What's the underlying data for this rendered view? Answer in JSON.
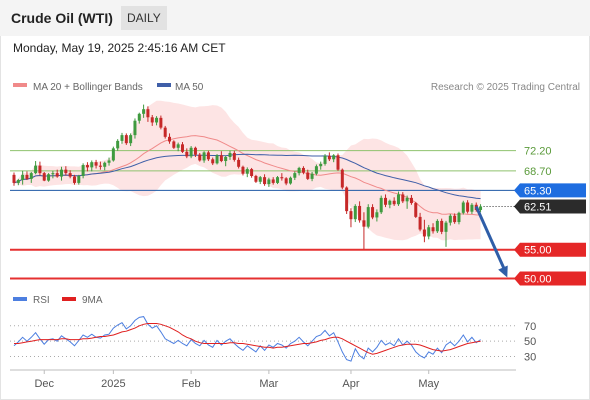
{
  "header": {
    "title": "Crude Oil (WTI)",
    "period": "DAILY",
    "timestamp": "Monday, May 19, 2025 2:45:16 AM CET"
  },
  "colors": {
    "bullish": "#3f9a3f",
    "bearish": "#c62828",
    "ma20": "#f08a8a",
    "bollinger_fill": "#fde4e4",
    "ma50": "#3f5fa8",
    "resistance": "#8fc26e",
    "pivot": "#1f5aa6",
    "current": "#2b2b2b",
    "support": "#e53030",
    "rsi": "#4d7fe0",
    "rsi_ma": "#e02020",
    "arrow": "#2f5ea8"
  },
  "chart_data": [
    {
      "type": "candlestick",
      "legend": [
        {
          "label": "MA 20 + Bollinger Bands",
          "color": "#f08a8a"
        },
        {
          "label": "MA 50",
          "color": "#3f5fa8"
        }
      ],
      "copyright": "Research © 2025 Trading Central",
      "ylim": [
        48.0,
        81.0
      ],
      "x_tick_labels": [
        "Dec",
        "2025",
        "Feb",
        "Mar",
        "Apr",
        "May"
      ],
      "x_tick_index": [
        7,
        23,
        41,
        59,
        78,
        96
      ],
      "levels": [
        {
          "label": "72.20",
          "value": 72.2,
          "kind": "resistance"
        },
        {
          "label": "68.70",
          "value": 68.7,
          "kind": "resistance"
        },
        {
          "label": "65.30",
          "value": 65.3,
          "kind": "pivot"
        },
        {
          "label": "62.51",
          "value": 62.51,
          "kind": "current"
        },
        {
          "label": "55.00",
          "value": 55.0,
          "kind": "support"
        },
        {
          "label": "50.00",
          "value": 50.0,
          "kind": "support"
        }
      ],
      "forecast_arrow": {
        "from_index": 107,
        "from_value": 62.5,
        "to_index": 114,
        "to_value": 50.5
      },
      "ohlc": [
        [
          68.0,
          68.4,
          66.1,
          66.6
        ],
        [
          66.6,
          67.3,
          66.2,
          67.1
        ],
        [
          67.1,
          68.7,
          66.3,
          68.0
        ],
        [
          68.0,
          68.6,
          67.1,
          67.3
        ],
        [
          67.3,
          68.5,
          66.6,
          68.3
        ],
        [
          68.3,
          70.4,
          68.1,
          69.6
        ],
        [
          69.6,
          70.3,
          67.9,
          68.3
        ],
        [
          68.3,
          68.5,
          66.9,
          67.0
        ],
        [
          67.0,
          68.3,
          66.8,
          68.1
        ],
        [
          68.1,
          68.7,
          67.4,
          68.3
        ],
        [
          68.3,
          68.9,
          67.5,
          67.7
        ],
        [
          67.7,
          69.4,
          67.0,
          68.9
        ],
        [
          68.9,
          69.5,
          67.9,
          68.3
        ],
        [
          68.3,
          68.8,
          67.4,
          67.7
        ],
        [
          67.7,
          68.0,
          66.3,
          66.6
        ],
        [
          66.6,
          68.0,
          66.3,
          67.8
        ],
        [
          67.8,
          70.0,
          67.4,
          69.7
        ],
        [
          69.7,
          70.2,
          68.6,
          69.3
        ],
        [
          69.3,
          70.5,
          68.6,
          70.2
        ],
        [
          70.2,
          70.6,
          69.1,
          69.6
        ],
        [
          69.6,
          70.3,
          68.9,
          69.4
        ],
        [
          69.4,
          70.3,
          68.8,
          70.1
        ],
        [
          70.1,
          71.0,
          69.6,
          70.5
        ],
        [
          70.5,
          72.9,
          70.3,
          72.6
        ],
        [
          72.6,
          74.2,
          72.2,
          73.9
        ],
        [
          73.9,
          75.3,
          73.4,
          74.9
        ],
        [
          74.9,
          75.2,
          73.2,
          73.5
        ],
        [
          73.5,
          75.2,
          73.0,
          74.9
        ],
        [
          74.9,
          77.8,
          74.3,
          77.4
        ],
        [
          77.4,
          78.8,
          76.9,
          78.6
        ],
        [
          78.6,
          80.2,
          77.9,
          79.4
        ],
        [
          79.4,
          79.9,
          77.2,
          78.0
        ],
        [
          78.0,
          78.4,
          76.5,
          77.1
        ],
        [
          77.1,
          78.2,
          76.6,
          77.9
        ],
        [
          77.9,
          78.3,
          75.9,
          76.2
        ],
        [
          76.2,
          76.5,
          74.3,
          74.6
        ],
        [
          74.6,
          75.2,
          73.4,
          73.8
        ],
        [
          73.8,
          74.0,
          72.5,
          72.7
        ],
        [
          72.7,
          73.6,
          72.1,
          73.3
        ],
        [
          73.3,
          73.7,
          71.8,
          72.0
        ],
        [
          72.0,
          72.6,
          70.9,
          71.2
        ],
        [
          71.2,
          73.0,
          70.9,
          72.7
        ],
        [
          72.7,
          72.9,
          71.1,
          71.5
        ],
        [
          71.5,
          71.8,
          70.3,
          70.5
        ],
        [
          70.5,
          72.1,
          70.1,
          71.9
        ],
        [
          71.9,
          72.2,
          70.4,
          70.7
        ],
        [
          70.7,
          71.0,
          69.7,
          70.0
        ],
        [
          70.0,
          71.6,
          69.8,
          71.4
        ],
        [
          71.4,
          72.1,
          70.2,
          70.4
        ],
        [
          70.4,
          71.3,
          69.5,
          71.1
        ],
        [
          71.1,
          72.2,
          70.6,
          71.8
        ],
        [
          71.8,
          72.2,
          70.3,
          70.6
        ],
        [
          70.6,
          71.0,
          69.1,
          69.4
        ],
        [
          69.4,
          69.6,
          67.9,
          68.2
        ],
        [
          68.2,
          69.3,
          67.6,
          69.0
        ],
        [
          69.0,
          69.2,
          67.5,
          67.8
        ],
        [
          67.8,
          68.0,
          66.6,
          66.8
        ],
        [
          66.8,
          67.8,
          66.4,
          67.6
        ],
        [
          67.6,
          68.1,
          66.1,
          66.4
        ],
        [
          66.4,
          67.5,
          65.9,
          67.2
        ],
        [
          67.2,
          67.6,
          66.3,
          66.6
        ],
        [
          66.6,
          67.8,
          66.4,
          67.6
        ],
        [
          67.6,
          68.3,
          67.0,
          67.4
        ],
        [
          67.4,
          67.6,
          66.2,
          66.5
        ],
        [
          66.5,
          67.7,
          66.3,
          67.5
        ],
        [
          67.5,
          68.6,
          67.1,
          68.3
        ],
        [
          68.3,
          69.4,
          67.9,
          69.2
        ],
        [
          69.2,
          69.5,
          68.1,
          68.4
        ],
        [
          68.4,
          68.9,
          67.1,
          67.3
        ],
        [
          67.3,
          68.5,
          66.9,
          68.2
        ],
        [
          68.2,
          69.8,
          67.9,
          69.5
        ],
        [
          69.5,
          70.3,
          68.9,
          69.9
        ],
        [
          69.9,
          71.6,
          69.6,
          71.3
        ],
        [
          71.3,
          71.9,
          70.4,
          70.7
        ],
        [
          70.7,
          71.6,
          70.2,
          71.4
        ],
        [
          71.4,
          71.7,
          68.7,
          68.9
        ],
        [
          68.9,
          69.1,
          65.5,
          65.8
        ],
        [
          65.8,
          66.0,
          61.2,
          61.7
        ],
        [
          61.7,
          62.2,
          58.9,
          60.3
        ],
        [
          60.3,
          62.9,
          59.8,
          62.6
        ],
        [
          62.6,
          63.4,
          59.7,
          60.1
        ],
        [
          60.1,
          61.5,
          55.1,
          59.0
        ],
        [
          59.0,
          62.9,
          58.7,
          62.4
        ],
        [
          62.4,
          62.9,
          60.3,
          60.6
        ],
        [
          60.6,
          62.0,
          59.9,
          61.5
        ],
        [
          61.5,
          64.4,
          61.2,
          64.0
        ],
        [
          64.0,
          64.6,
          62.4,
          62.8
        ],
        [
          62.8,
          63.7,
          62.2,
          63.5
        ],
        [
          63.5,
          64.1,
          62.6,
          62.9
        ],
        [
          62.9,
          65.1,
          62.6,
          64.6
        ],
        [
          64.6,
          65.0,
          63.1,
          63.4
        ],
        [
          63.4,
          64.4,
          62.1,
          64.0
        ],
        [
          64.0,
          64.5,
          62.8,
          63.1
        ],
        [
          63.1,
          63.3,
          60.5,
          60.7
        ],
        [
          60.7,
          61.4,
          58.2,
          58.5
        ],
        [
          58.5,
          60.2,
          56.3,
          57.3
        ],
        [
          57.3,
          59.3,
          56.8,
          58.9
        ],
        [
          58.9,
          59.6,
          57.8,
          58.2
        ],
        [
          58.2,
          60.3,
          57.9,
          60.0
        ],
        [
          60.0,
          60.4,
          57.7,
          58.1
        ],
        [
          58.1,
          60.0,
          55.5,
          59.7
        ],
        [
          59.7,
          61.2,
          59.2,
          60.9
        ],
        [
          60.9,
          61.3,
          59.5,
          59.8
        ],
        [
          59.8,
          61.6,
          59.4,
          61.4
        ],
        [
          61.4,
          63.5,
          61.1,
          63.2
        ],
        [
          63.2,
          63.6,
          61.3,
          61.6
        ],
        [
          61.6,
          63.1,
          61.2,
          62.8
        ],
        [
          62.8,
          63.2,
          61.6,
          61.9
        ],
        [
          61.9,
          62.9,
          61.5,
          62.51
        ]
      ]
    },
    {
      "type": "line",
      "legend": [
        {
          "label": "RSI",
          "color": "#4d7fe0"
        },
        {
          "label": "9MA",
          "color": "#e02020"
        }
      ],
      "ylim": [
        15,
        88
      ],
      "y_tick_labels": [
        "70",
        "50",
        "30"
      ],
      "y_tick_values": [
        70,
        50,
        30
      ],
      "series": [
        {
          "name": "RSI",
          "values": [
            44,
            49,
            55,
            50,
            55,
            61,
            53,
            46,
            52,
            53,
            50,
            57,
            53,
            49,
            44,
            51,
            58,
            55,
            59,
            55,
            54,
            58,
            59,
            67,
            71,
            74,
            66,
            70,
            77,
            81,
            82,
            72,
            67,
            70,
            62,
            53,
            50,
            47,
            51,
            47,
            44,
            52,
            47,
            44,
            51,
            45,
            42,
            51,
            45,
            50,
            53,
            47,
            42,
            38,
            44,
            40,
            36,
            44,
            38,
            45,
            42,
            47,
            45,
            41,
            47,
            50,
            55,
            49,
            44,
            50,
            56,
            58,
            64,
            57,
            61,
            49,
            36,
            26,
            24,
            40,
            31,
            27,
            41,
            36,
            42,
            51,
            45,
            48,
            44,
            53,
            45,
            50,
            45,
            36,
            31,
            28,
            36,
            33,
            41,
            35,
            45,
            49,
            44,
            50,
            58,
            49,
            55,
            48,
            52
          ]
        },
        {
          "name": "9MA",
          "values": [
            47,
            47,
            48,
            49,
            50,
            51,
            52,
            52,
            52,
            52,
            52,
            53,
            53,
            52,
            52,
            52,
            53,
            53,
            54,
            55,
            56,
            56,
            57,
            58,
            60,
            62,
            63,
            65,
            67,
            70,
            72,
            73,
            73,
            73,
            72,
            70,
            68,
            65,
            62,
            58,
            55,
            53,
            50,
            48,
            47,
            47,
            47,
            47,
            47,
            47,
            48,
            48,
            47,
            47,
            46,
            45,
            44,
            43,
            42,
            42,
            41,
            42,
            42,
            43,
            44,
            45,
            46,
            47,
            47,
            48,
            49,
            51,
            52,
            54,
            55,
            55,
            53,
            50,
            47,
            44,
            41,
            38,
            35,
            33,
            34,
            36,
            38,
            40,
            42,
            44,
            45,
            46,
            46,
            46,
            45,
            43,
            41,
            39,
            38,
            37,
            38,
            39,
            41,
            43,
            45,
            47,
            48,
            49,
            50
          ]
        }
      ]
    }
  ]
}
